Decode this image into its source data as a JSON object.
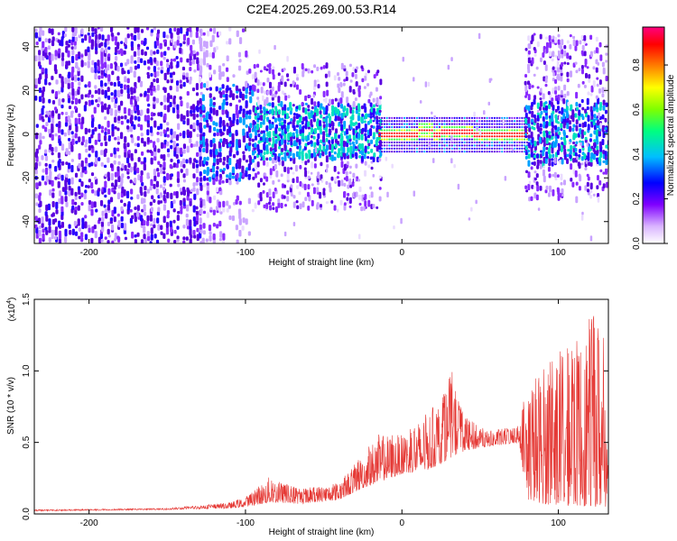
{
  "title": "C2E4.2025.269.00.53.R14",
  "chart_data": [
    {
      "type": "heatmap",
      "xlabel": "Height of straight line (km)",
      "ylabel": "Frequency (Hz)",
      "xlim": [
        -235,
        132
      ],
      "ylim": [
        -50,
        49
      ],
      "xticks": [
        -200,
        -100,
        0,
        100
      ],
      "yticks": [
        -40,
        -20,
        0,
        20,
        40
      ],
      "colorbar": {
        "label": "Normalized spectral amplitude",
        "range": [
          0.0,
          0.97
        ],
        "ticks": [
          "0.0",
          "0.2",
          "0.4",
          "0.6",
          "0.8"
        ],
        "colors": [
          "#ffffff",
          "#d9b3ff",
          "#7f00ff",
          "#0000ff",
          "#00bfff",
          "#00ff7f",
          "#7fff00",
          "#ffff00",
          "#ff7f00",
          "#ff0000",
          "#ff007f"
        ]
      },
      "regions": [
        {
          "x": [
            -235,
            -130
          ],
          "description_amplitude": 0.25,
          "freq_spread": [
            -50,
            49
          ]
        },
        {
          "x": [
            -130,
            -15
          ],
          "description_amplitude": 0.3,
          "freq_spread": [
            -25,
            22
          ]
        },
        {
          "x": [
            -15,
            80
          ],
          "description_amplitude": 0.9,
          "freq_center": 0
        },
        {
          "x": [
            80,
            132
          ],
          "description_amplitude": 0.35,
          "freq_spread": [
            -25,
            40
          ]
        }
      ]
    },
    {
      "type": "line",
      "xlabel": "Height of straight line (km)",
      "ylabel": "SNR (10 * v/v)",
      "y_multiplier": "(x10^4)",
      "xlim": [
        -235,
        132
      ],
      "ylim": [
        0,
        1.5
      ],
      "xticks": [
        -200,
        -100,
        0,
        100
      ],
      "yticks": [
        "0.0",
        "0.5",
        "1.0",
        "1.5"
      ],
      "series": [
        {
          "color": "#e53935",
          "envelope": [
            {
              "x": -235,
              "base": 0.02,
              "peak": 0.03
            },
            {
              "x": -150,
              "base": 0.03,
              "peak": 0.04
            },
            {
              "x": -110,
              "base": 0.04,
              "peak": 0.08
            },
            {
              "x": -100,
              "base": 0.05,
              "peak": 0.12
            },
            {
              "x": -85,
              "base": 0.08,
              "peak": 0.26
            },
            {
              "x": -65,
              "base": 0.07,
              "peak": 0.18
            },
            {
              "x": -40,
              "base": 0.1,
              "peak": 0.22
            },
            {
              "x": -25,
              "base": 0.18,
              "peak": 0.42
            },
            {
              "x": -15,
              "base": 0.22,
              "peak": 0.56
            },
            {
              "x": 0,
              "base": 0.28,
              "peak": 0.55
            },
            {
              "x": 15,
              "base": 0.3,
              "peak": 0.7
            },
            {
              "x": 25,
              "base": 0.35,
              "peak": 0.8
            },
            {
              "x": 32,
              "base": 0.4,
              "peak": 1.0
            },
            {
              "x": 40,
              "base": 0.44,
              "peak": 0.68
            },
            {
              "x": 55,
              "base": 0.47,
              "peak": 0.58
            },
            {
              "x": 75,
              "base": 0.5,
              "peak": 0.62
            },
            {
              "x": 80,
              "base": 0.1,
              "peak": 0.95
            },
            {
              "x": 95,
              "base": 0.06,
              "peak": 1.1
            },
            {
              "x": 110,
              "base": 0.06,
              "peak": 1.2
            },
            {
              "x": 125,
              "base": 0.05,
              "peak": 1.45
            },
            {
              "x": 132,
              "base": 0.05,
              "peak": 1.1
            }
          ]
        }
      ]
    }
  ]
}
